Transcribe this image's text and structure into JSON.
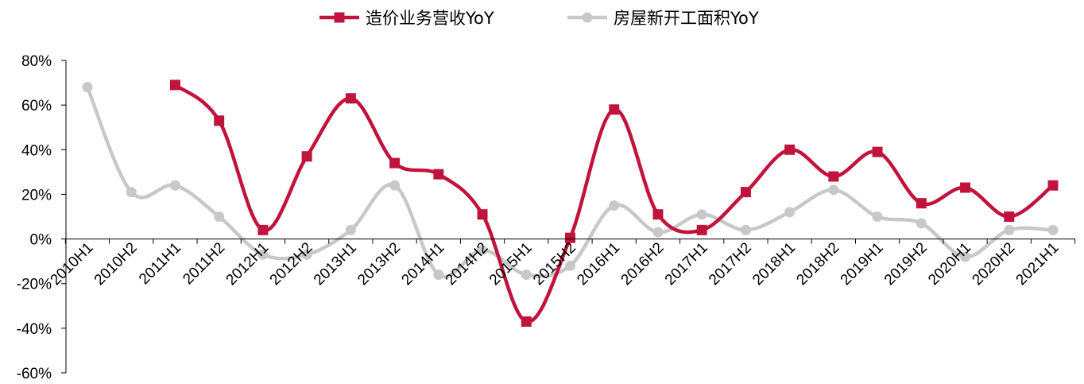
{
  "chart_data": {
    "type": "line",
    "smooth": true,
    "categories": [
      "2010H1",
      "2010H2",
      "2011H1",
      "2011H2",
      "2012H1",
      "2012H2",
      "2013H1",
      "2013H2",
      "2014H1",
      "2014H2",
      "2015H1",
      "2015H2",
      "2016H1",
      "2016H2",
      "2017H1",
      "2017H2",
      "2018H1",
      "2018H2",
      "2019H1",
      "2019H2",
      "2020H1",
      "2020H2",
      "2021H1"
    ],
    "series": [
      {
        "name": "造价业务营收YoY",
        "color": "#c0143c",
        "marker": "square",
        "values": [
          null,
          null,
          69,
          53,
          4,
          37,
          63,
          34,
          29,
          11,
          -37,
          0.5,
          58,
          11,
          4,
          21,
          40,
          28,
          39,
          16,
          23,
          10,
          24
        ]
      },
      {
        "name": "房屋新开工面积YoY",
        "color": "#c8c8c8",
        "marker": "circle",
        "values": [
          68,
          21,
          24,
          10,
          -7,
          -7,
          4,
          24,
          -16,
          -5,
          -16,
          -12,
          15,
          3,
          11,
          4,
          12,
          22,
          10,
          7,
          -8,
          4,
          4
        ]
      }
    ],
    "yaxis": {
      "min": -60,
      "max": 80,
      "step": 20,
      "tick_labels": [
        "-60%",
        "-40%",
        "-20%",
        "0%",
        "20%",
        "40%",
        "60%",
        "80%"
      ]
    },
    "xaxis_at": 0,
    "legend": {
      "position": "top-center"
    },
    "grid": false
  }
}
